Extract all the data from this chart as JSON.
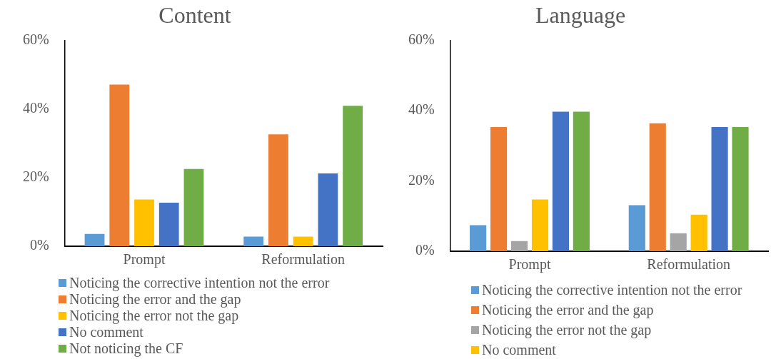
{
  "chart_data": [
    {
      "type": "bar",
      "title": "Content",
      "categories": [
        "Prompt",
        "Reformulation"
      ],
      "ylim": [
        0,
        60
      ],
      "yticks": [
        {
          "value": 0,
          "label": "0%"
        },
        {
          "value": 20,
          "label": "20%"
        },
        {
          "value": 40,
          "label": "40%"
        },
        {
          "value": 60,
          "label": "60%"
        }
      ],
      "grid": false,
      "legend": "bottom",
      "series": [
        {
          "name": "Noticing the corrective intention not the error",
          "color": "#5b9bd5",
          "values": [
            3.6,
            2.8
          ]
        },
        {
          "name": "Noticing the error and the gap",
          "color": "#ed7d31",
          "values": [
            47.1,
            32.6
          ]
        },
        {
          "name": "Noticing the error not the gap",
          "color": "#ffc000",
          "values": [
            13.6,
            2.8
          ]
        },
        {
          "name": "No comment",
          "color": "#4472c4",
          "values": [
            12.7,
            21.2
          ]
        },
        {
          "name": "Not noticing the CF",
          "color": "#70ad47",
          "values": [
            22.5,
            40.9
          ]
        }
      ]
    },
    {
      "type": "bar",
      "title": "Language",
      "categories": [
        "Prompt",
        "Reformulation"
      ],
      "ylim": [
        0,
        60
      ],
      "yticks": [
        {
          "value": 0,
          "label": "0%"
        },
        {
          "value": 20,
          "label": "20%"
        },
        {
          "value": 40,
          "label": "40%"
        },
        {
          "value": 60,
          "label": "60%"
        }
      ],
      "grid": false,
      "legend": "bottom",
      "series": [
        {
          "name": "Noticing the corrective intention not the error",
          "color": "#5b9bd5",
          "values": [
            7.4,
            13.1
          ]
        },
        {
          "name": "Noticing the error and the gap",
          "color": "#ed7d31",
          "values": [
            35.3,
            36.4
          ]
        },
        {
          "name": "Noticing the error not the gap",
          "color": "#a5a5a5",
          "values": [
            2.9,
            5.1
          ]
        },
        {
          "name": "No comment",
          "color": "#ffc000",
          "values": [
            14.7,
            10.4
          ]
        },
        {
          "color": "#4472c4",
          "values": [
            39.7,
            35.3
          ]
        },
        {
          "color": "#70ad47",
          "values": [
            39.7,
            35.3
          ]
        }
      ]
    }
  ]
}
